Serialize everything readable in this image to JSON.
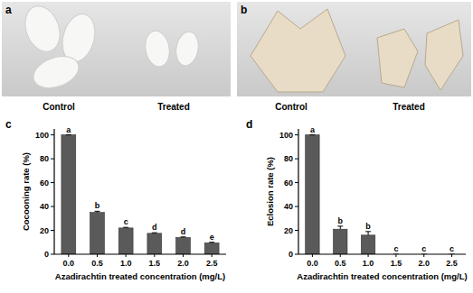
{
  "photos": [
    {
      "panel": "a",
      "captions": [
        "Control",
        "Treated"
      ]
    },
    {
      "panel": "b",
      "captions": [
        "Control",
        "Treated"
      ]
    }
  ],
  "chart_data": [
    {
      "type": "bar",
      "panel": "c",
      "x_label": "Azadirachtin treated concentration (mg/L)",
      "y_label": "Cocooning rate (%)",
      "categories": [
        "0.0",
        "0.5",
        "1.0",
        "1.5",
        "2.0",
        "2.5"
      ],
      "values": [
        100,
        35,
        22,
        17.5,
        14,
        9.5
      ],
      "errors": [
        0,
        1,
        0.5,
        0.5,
        0.5,
        0.5
      ],
      "significance": [
        "a",
        "b",
        "c",
        "d",
        "d",
        "e"
      ],
      "color": "#5a5a5a",
      "ylim": [
        0,
        105
      ],
      "yticks": [
        0,
        20,
        40,
        60,
        80,
        100
      ],
      "grid": false
    },
    {
      "type": "bar",
      "panel": "d",
      "x_label": "Azadirachtin treated concentration (mg/L)",
      "y_label": "Eclosion rate (%)",
      "categories": [
        "0.0",
        "0.5",
        "1.0",
        "1.5",
        "2.0",
        "2.5"
      ],
      "values": [
        100,
        21,
        16,
        0,
        0,
        0
      ],
      "errors": [
        0,
        2.5,
        3,
        0,
        0,
        0
      ],
      "significance": [
        "a",
        "b",
        "b",
        "c",
        "c",
        "c"
      ],
      "color": "#5a5a5a",
      "ylim": [
        0,
        105
      ],
      "yticks": [
        0,
        20,
        40,
        60,
        80,
        100
      ],
      "grid": false
    }
  ]
}
